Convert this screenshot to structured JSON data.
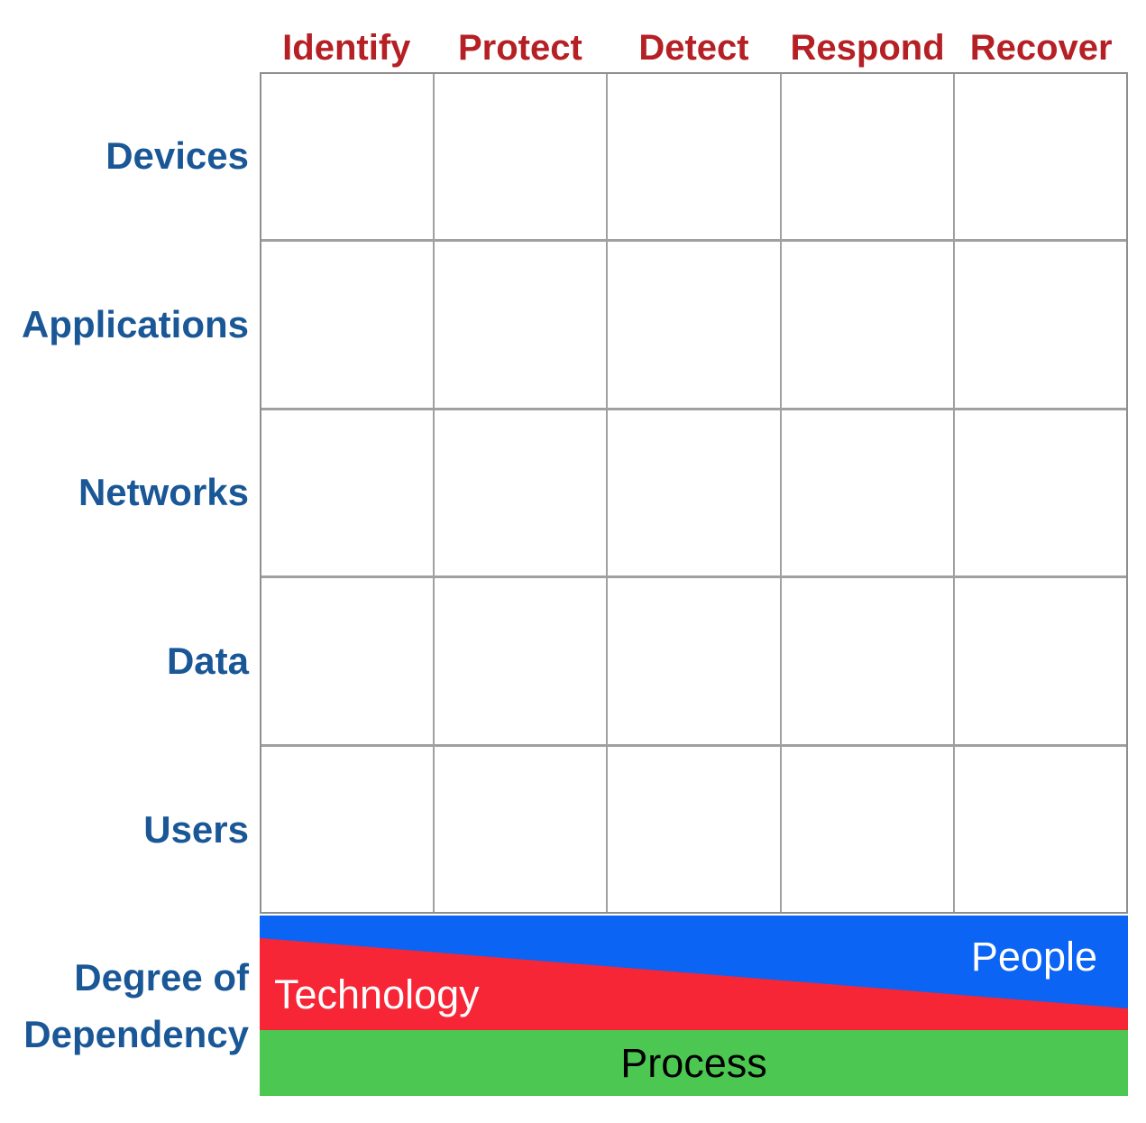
{
  "matrix": {
    "column_headers": [
      "Identify",
      "Protect",
      "Detect",
      "Respond",
      "Recover"
    ],
    "row_labels": [
      "Devices",
      "Applications",
      "Networks",
      "Data",
      "Users"
    ],
    "rows": 5,
    "cols": 5
  },
  "dependency": {
    "axis_label_line1": "Degree of",
    "axis_label_line2": "Dependency",
    "bands": [
      {
        "label": "People",
        "color": "#0b64f3",
        "text_color": "#ffffff"
      },
      {
        "label": "Technology",
        "color": "#f72637",
        "text_color": "#ffffff"
      },
      {
        "label": "Process",
        "color": "#4cc751",
        "text_color": "#000000"
      }
    ]
  },
  "colors": {
    "header_text": "#b52025",
    "row_label_text": "#1a5796",
    "grid_line": "#a0a0a0",
    "grid_border": "#8f8f8f",
    "background": "#ffffff"
  }
}
